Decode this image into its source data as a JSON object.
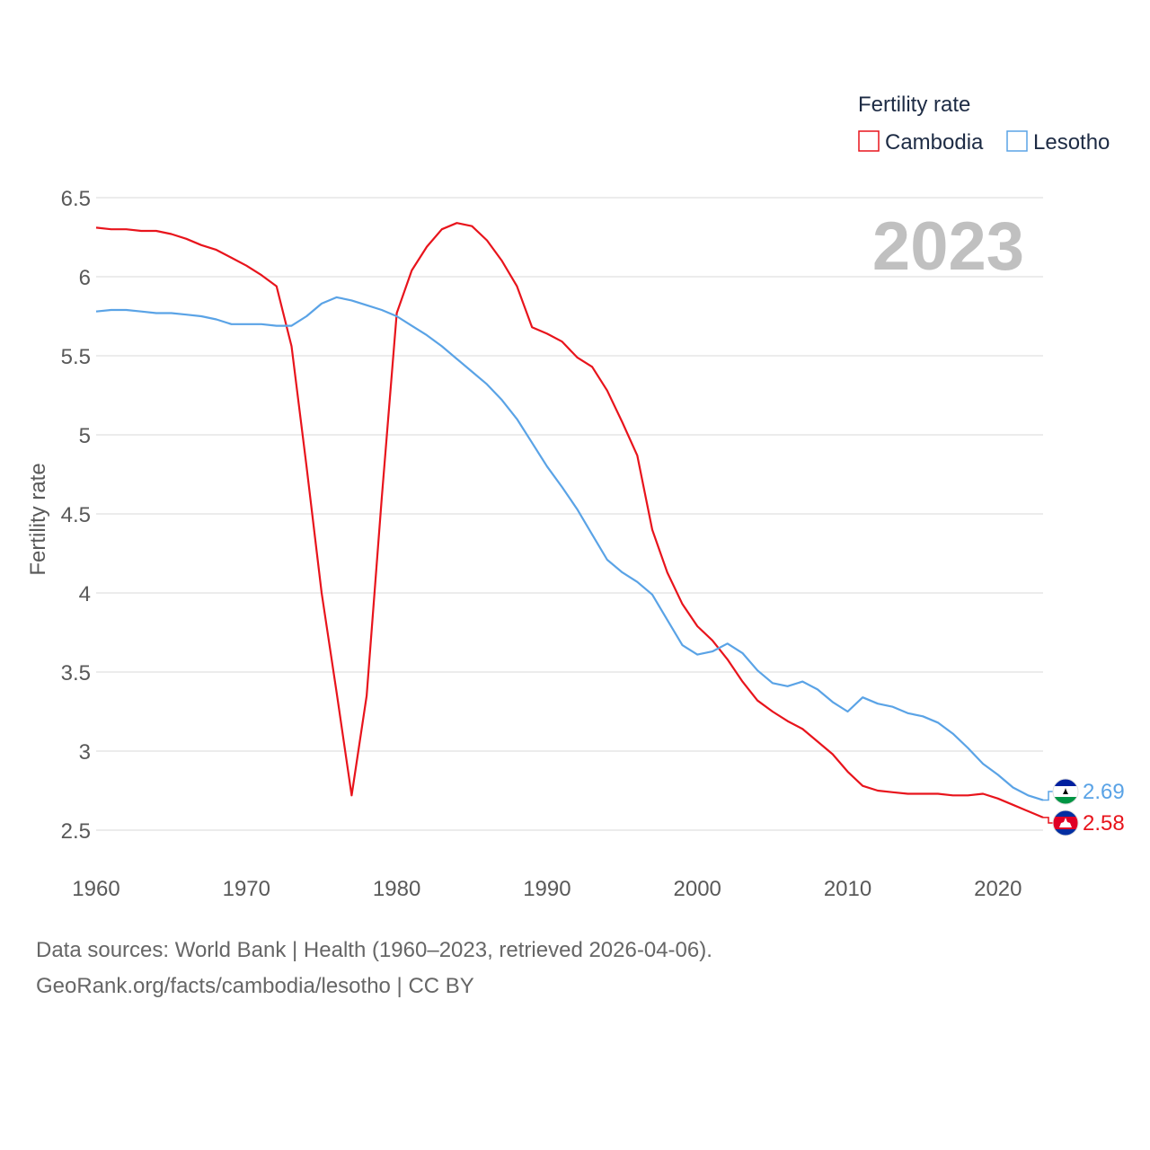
{
  "chart_data": {
    "type": "line",
    "title": "",
    "ylabel": "Fertility rate",
    "xlabel": "",
    "xlim": [
      1960,
      2023
    ],
    "ylim": [
      2.5,
      6.5
    ],
    "yticks": [
      2.5,
      3,
      3.5,
      4,
      4.5,
      5,
      5.5,
      6,
      6.5
    ],
    "ytick_labels": [
      "2.5",
      "3",
      "3.5",
      "4",
      "4.5",
      "5",
      "5.5",
      "6",
      "6.5"
    ],
    "xticks": [
      1960,
      1970,
      1980,
      1990,
      2000,
      2010,
      2020
    ],
    "xtick_labels": [
      "1960",
      "1970",
      "1980",
      "1990",
      "2000",
      "2010",
      "2020"
    ],
    "year_label": "2023",
    "legend": {
      "title": "Fertility rate",
      "position": "top-right"
    },
    "x": [
      1960,
      1961,
      1962,
      1963,
      1964,
      1965,
      1966,
      1967,
      1968,
      1969,
      1970,
      1971,
      1972,
      1973,
      1974,
      1975,
      1976,
      1977,
      1978,
      1979,
      1980,
      1981,
      1982,
      1983,
      1984,
      1985,
      1986,
      1987,
      1988,
      1989,
      1990,
      1991,
      1992,
      1993,
      1994,
      1995,
      1996,
      1997,
      1998,
      1999,
      2000,
      2001,
      2002,
      2003,
      2004,
      2005,
      2006,
      2007,
      2008,
      2009,
      2010,
      2011,
      2012,
      2013,
      2014,
      2015,
      2016,
      2017,
      2018,
      2019,
      2020,
      2021,
      2022,
      2023
    ],
    "series": [
      {
        "name": "Cambodia",
        "color": "#e8141c",
        "end_label": "2.58",
        "values": [
          6.31,
          6.3,
          6.3,
          6.29,
          6.29,
          6.27,
          6.24,
          6.2,
          6.17,
          6.12,
          6.07,
          6.01,
          5.94,
          5.56,
          4.8,
          4.0,
          3.37,
          2.72,
          3.35,
          4.6,
          5.77,
          6.04,
          6.19,
          6.3,
          6.34,
          6.32,
          6.23,
          6.1,
          5.94,
          5.68,
          5.64,
          5.59,
          5.49,
          5.43,
          5.28,
          5.08,
          4.87,
          4.4,
          4.13,
          3.93,
          3.79,
          3.7,
          3.58,
          3.44,
          3.32,
          3.25,
          3.19,
          3.14,
          3.06,
          2.98,
          2.87,
          2.78,
          2.75,
          2.74,
          2.73,
          2.73,
          2.73,
          2.72,
          2.72,
          2.73,
          2.7,
          2.66,
          2.62,
          2.58
        ]
      },
      {
        "name": "Lesotho",
        "color": "#5aa3e6",
        "end_label": "2.69",
        "values": [
          5.78,
          5.79,
          5.79,
          5.78,
          5.77,
          5.77,
          5.76,
          5.75,
          5.73,
          5.7,
          5.7,
          5.7,
          5.69,
          5.69,
          5.75,
          5.83,
          5.87,
          5.85,
          5.82,
          5.79,
          5.75,
          5.69,
          5.63,
          5.56,
          5.48,
          5.4,
          5.32,
          5.22,
          5.1,
          4.95,
          4.8,
          4.67,
          4.53,
          4.37,
          4.21,
          4.13,
          4.07,
          3.99,
          3.83,
          3.67,
          3.61,
          3.63,
          3.68,
          3.62,
          3.51,
          3.43,
          3.41,
          3.44,
          3.39,
          3.31,
          3.25,
          3.34,
          3.3,
          3.28,
          3.24,
          3.22,
          3.18,
          3.11,
          3.02,
          2.92,
          2.85,
          2.77,
          2.72,
          2.69
        ]
      }
    ]
  },
  "footer": {
    "sources": "Data sources: World Bank | Health (1960–2023, retrieved 2026-04-06).",
    "credit": "GeoRank.org/facts/cambodia/lesotho | CC BY"
  },
  "colors": {
    "grid": "#e6e6e6",
    "text": "#595959",
    "legend_text": "#1d2b44",
    "year": "#c0c0c0"
  }
}
